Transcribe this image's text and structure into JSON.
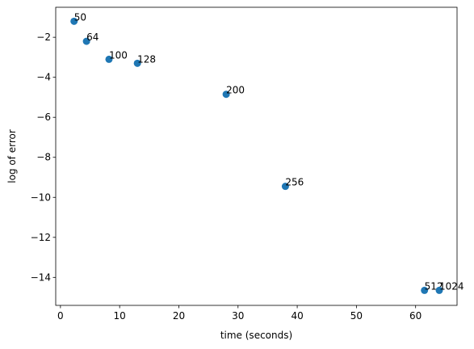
{
  "chart_data": {
    "type": "scatter",
    "title": "",
    "xlabel": "time (seconds)",
    "ylabel": "log of error",
    "xlim": [
      -0.8,
      67
    ],
    "ylim": [
      -15.4,
      -0.5
    ],
    "xticks": [
      0,
      10,
      20,
      30,
      40,
      50,
      60
    ],
    "yticks": [
      -2,
      -4,
      -6,
      -8,
      -10,
      -12,
      -14
    ],
    "grid": false,
    "marker_color": "#1f77b4",
    "points": [
      {
        "x": 2.3,
        "y": -1.2,
        "label": "50"
      },
      {
        "x": 4.4,
        "y": -2.2,
        "label": "64"
      },
      {
        "x": 8.2,
        "y": -3.1,
        "label": "100"
      },
      {
        "x": 13.0,
        "y": -3.3,
        "label": "128"
      },
      {
        "x": 28.0,
        "y": -4.85,
        "label": "200"
      },
      {
        "x": 38.0,
        "y": -9.45,
        "label": "256"
      },
      {
        "x": 61.5,
        "y": -14.65,
        "label": "512"
      },
      {
        "x": 64.0,
        "y": -14.65,
        "label": "1024"
      }
    ]
  }
}
